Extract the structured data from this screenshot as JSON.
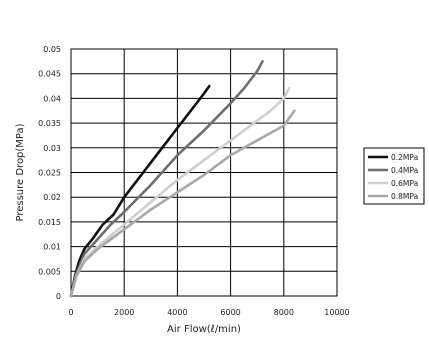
{
  "chart_data": {
    "type": "line",
    "xlabel": "Air Flow(ℓ/min)",
    "ylabel": "Pressure Drop(MPa)",
    "xlim": [
      0,
      10000
    ],
    "ylim": [
      0,
      0.05
    ],
    "x_ticks": [
      "0",
      "2000",
      "4000",
      "6000",
      "8000",
      "10000"
    ],
    "y_ticks": [
      "0",
      "0.005",
      "0.01",
      "0.015",
      "0.02",
      "0.025",
      "0.03",
      "0.035",
      "0.04",
      "0.045",
      "0.05"
    ],
    "grid": true,
    "legend_position": "right",
    "series": [
      {
        "name": "0.2MPa",
        "color": "#111111",
        "points": [
          [
            0,
            0
          ],
          [
            150,
            0.004
          ],
          [
            300,
            0.007
          ],
          [
            500,
            0.0095
          ],
          [
            800,
            0.0115
          ],
          [
            1200,
            0.0145
          ],
          [
            1600,
            0.0165
          ],
          [
            2000,
            0.02
          ],
          [
            2500,
            0.0235
          ],
          [
            3000,
            0.027
          ],
          [
            3500,
            0.0305
          ],
          [
            4000,
            0.034
          ],
          [
            4500,
            0.0375
          ],
          [
            5000,
            0.041
          ],
          [
            5200,
            0.0425
          ]
        ]
      },
      {
        "name": "0.4MPa",
        "color": "#6e6e6e",
        "points": [
          [
            0,
            0
          ],
          [
            200,
            0.0045
          ],
          [
            500,
            0.0085
          ],
          [
            1000,
            0.0115
          ],
          [
            1500,
            0.0145
          ],
          [
            2000,
            0.017
          ],
          [
            3000,
            0.0225
          ],
          [
            4000,
            0.0285
          ],
          [
            5000,
            0.0335
          ],
          [
            6000,
            0.039
          ],
          [
            6500,
            0.042
          ],
          [
            7000,
            0.0455
          ],
          [
            7200,
            0.0475
          ]
        ]
      },
      {
        "name": "0.6MPa",
        "color": "#cfcfcf",
        "points": [
          [
            0,
            0
          ],
          [
            200,
            0.004
          ],
          [
            500,
            0.0075
          ],
          [
            1000,
            0.01
          ],
          [
            2000,
            0.0145
          ],
          [
            3000,
            0.019
          ],
          [
            4000,
            0.0235
          ],
          [
            5000,
            0.0275
          ],
          [
            6000,
            0.0315
          ],
          [
            7000,
            0.0355
          ],
          [
            7500,
            0.0375
          ],
          [
            8000,
            0.04
          ],
          [
            8200,
            0.042
          ]
        ]
      },
      {
        "name": "0.8MPa",
        "color": "#a8a8a8",
        "points": [
          [
            0,
            0
          ],
          [
            200,
            0.004
          ],
          [
            500,
            0.007
          ],
          [
            1000,
            0.0095
          ],
          [
            2000,
            0.0135
          ],
          [
            3000,
            0.0175
          ],
          [
            4000,
            0.021
          ],
          [
            5000,
            0.0245
          ],
          [
            6000,
            0.0285
          ],
          [
            7000,
            0.0315
          ],
          [
            8000,
            0.0345
          ],
          [
            8400,
            0.0375
          ]
        ]
      }
    ]
  }
}
